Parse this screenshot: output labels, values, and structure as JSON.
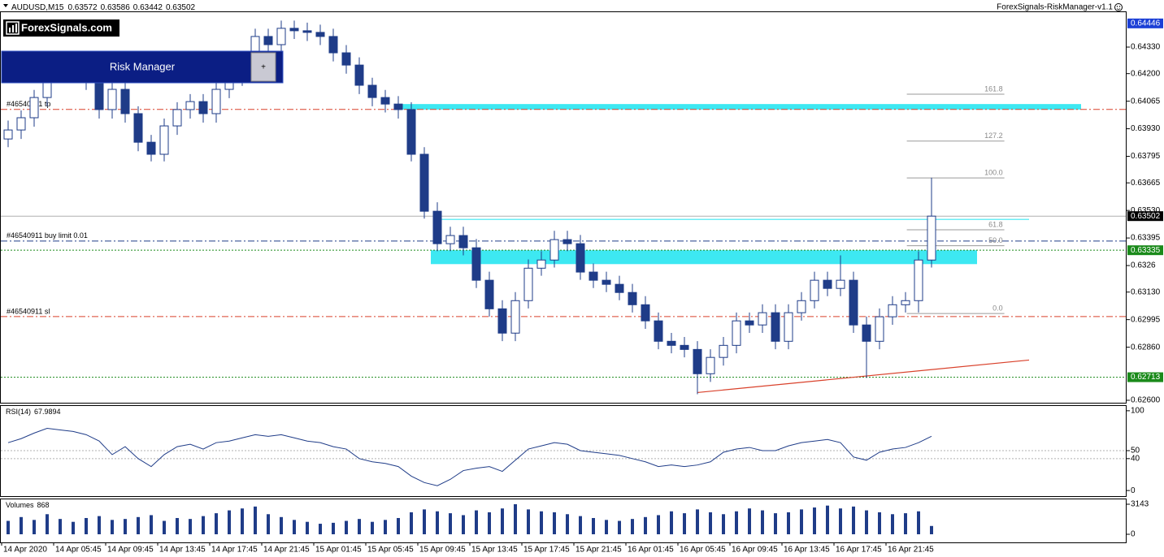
{
  "header": {
    "symbol": "AUDUSD,M15",
    "ohlc": [
      0.63572,
      0.63586,
      0.63442,
      0.63502
    ],
    "indicator": "ForexSignals-RiskManager-v1.1"
  },
  "logo": "ForexSignals.com",
  "panel": {
    "title": "Risk Manager",
    "button": "+"
  },
  "chart_data": [
    {
      "type": "candlestick",
      "color": "#1f3c88",
      "up_color": "#ffffff",
      "down_color": "#1f3c88",
      "ylim": [
        0.62588,
        0.64505
      ],
      "yticks": [
        {
          "value": 0.6433,
          "label": "0.64330"
        },
        {
          "value": 0.642,
          "label": "0.64200"
        },
        0.64065,
        {
          "value": 0.6393,
          "label": "0.63930"
        },
        0.63795,
        0.63665,
        {
          "value": 0.6353,
          "label": "0.63530"
        },
        0.63395,
        0.6326,
        {
          "value": 0.6313,
          "label": "0.63130"
        },
        0.62995,
        {
          "value": 0.6286,
          "label": "0.62860"
        },
        {
          "value": 0.626,
          "label": "0.62600"
        }
      ],
      "xticks": [
        {
          "value": 0,
          "label": "14 Apr 2020"
        },
        {
          "value": 4,
          "label": "14 Apr 05:45"
        },
        {
          "value": 8,
          "label": "14 Apr 09:45"
        },
        {
          "value": 12,
          "label": "14 Apr 13:45"
        },
        {
          "value": 16,
          "label": "14 Apr 17:45"
        },
        {
          "value": 20,
          "label": "14 Apr 21:45"
        },
        {
          "value": 24,
          "label": "15 Apr 01:45"
        },
        {
          "value": 28,
          "label": "15 Apr 05:45"
        },
        {
          "value": 32,
          "label": "15 Apr 09:45"
        },
        {
          "value": 36,
          "label": "15 Apr 13:45"
        },
        {
          "value": 40,
          "label": "15 Apr 17:45"
        },
        {
          "value": 44,
          "label": "15 Apr 21:45"
        },
        {
          "value": 48,
          "label": "16 Apr 01:45"
        },
        {
          "value": 52,
          "label": "16 Apr 05:45"
        },
        {
          "value": 56,
          "label": "16 Apr 09:45"
        },
        {
          "value": 60,
          "label": "16 Apr 13:45"
        },
        {
          "value": 64,
          "label": "16 Apr 17:45"
        },
        {
          "value": 68,
          "label": "16 Apr 21:45"
        }
      ],
      "open": [
        0.6388,
        0.63924,
        0.63984,
        0.64083,
        0.64223,
        0.64203,
        0.64242,
        0.64163,
        0.64024,
        0.64123,
        0.64004,
        0.63864,
        0.63805,
        0.63944,
        0.64024,
        0.64063,
        0.64004,
        0.64123,
        0.64183,
        0.64242,
        0.64382,
        0.64342,
        0.64422,
        0.6441,
        0.64402,
        0.64382,
        0.64302,
        0.64242,
        0.64143,
        0.64083,
        0.64051,
        0.64024,
        0.63805,
        0.63526,
        0.63367,
        0.63407,
        0.63347,
        0.63188,
        0.63048,
        0.62929,
        0.63088,
        0.63247,
        0.63287,
        0.63387,
        0.63367,
        0.63228,
        0.63188,
        0.63168,
        0.63128,
        0.63068,
        0.62989,
        0.62889,
        0.62869,
        0.62849,
        0.6273,
        0.6281,
        0.62869,
        0.62989,
        0.62969,
        0.63029,
        0.62889,
        0.63029,
        0.63088,
        0.63188,
        0.63148,
        0.63188,
        0.62969,
        0.62889,
        0.63009,
        0.63068,
        0.63088,
        0.63287
      ],
      "high": [
        0.6397,
        0.6402,
        0.6412,
        0.6426,
        0.6426,
        0.6428,
        0.6428,
        0.642,
        0.6416,
        0.6416,
        0.6404,
        0.639,
        0.6398,
        0.6406,
        0.641,
        0.641,
        0.6416,
        0.6422,
        0.6428,
        0.6442,
        0.6442,
        0.6446,
        0.6446,
        0.6445,
        0.6444,
        0.6442,
        0.6434,
        0.6428,
        0.6418,
        0.6412,
        0.6409,
        0.6406,
        0.6384,
        0.6357,
        0.6345,
        0.6345,
        0.6339,
        0.6323,
        0.6309,
        0.6313,
        0.6329,
        0.6333,
        0.6343,
        0.6343,
        0.6341,
        0.6327,
        0.6323,
        0.6321,
        0.6317,
        0.6311,
        0.6303,
        0.6293,
        0.6291,
        0.6289,
        0.6285,
        0.6291,
        0.6303,
        0.6303,
        0.6307,
        0.6307,
        0.6307,
        0.6313,
        0.6323,
        0.6323,
        0.6331,
        0.6323,
        0.6301,
        0.6305,
        0.6311,
        0.6313,
        0.6333,
        0.6369
      ],
      "low": [
        0.6384,
        0.6388,
        0.6394,
        0.6404,
        0.6416,
        0.6416,
        0.6412,
        0.6398,
        0.6398,
        0.6396,
        0.6382,
        0.6377,
        0.6377,
        0.639,
        0.6398,
        0.6396,
        0.6396,
        0.6408,
        0.6414,
        0.642,
        0.643,
        0.643,
        0.6437,
        0.6436,
        0.6434,
        0.6426,
        0.642,
        0.641,
        0.6404,
        0.6401,
        0.6398,
        0.6377,
        0.6349,
        0.6333,
        0.6333,
        0.6331,
        0.6315,
        0.6301,
        0.6289,
        0.6289,
        0.6305,
        0.6321,
        0.6325,
        0.6333,
        0.6319,
        0.6315,
        0.6313,
        0.6309,
        0.6303,
        0.6295,
        0.6285,
        0.6283,
        0.6281,
        0.6263,
        0.6269,
        0.6277,
        0.6283,
        0.6293,
        0.6293,
        0.6285,
        0.6285,
        0.6299,
        0.6305,
        0.6311,
        0.6311,
        0.6293,
        0.6271,
        0.6285,
        0.6297,
        0.6303,
        0.6303,
        0.6325
      ],
      "close": [
        0.63924,
        0.63984,
        0.64083,
        0.64223,
        0.64203,
        0.64242,
        0.64163,
        0.64024,
        0.64123,
        0.64004,
        0.63864,
        0.63805,
        0.63944,
        0.64024,
        0.64063,
        0.64004,
        0.64123,
        0.64183,
        0.64242,
        0.64382,
        0.64342,
        0.64422,
        0.6441,
        0.64402,
        0.64382,
        0.64302,
        0.64242,
        0.64143,
        0.64083,
        0.64051,
        0.64024,
        0.63805,
        0.63526,
        0.63367,
        0.63407,
        0.63347,
        0.63188,
        0.63048,
        0.62929,
        0.63088,
        0.63247,
        0.63287,
        0.63387,
        0.63367,
        0.63228,
        0.63188,
        0.63168,
        0.63128,
        0.63068,
        0.62989,
        0.62889,
        0.62869,
        0.62849,
        0.6273,
        0.6281,
        0.62869,
        0.62989,
        0.62969,
        0.63029,
        0.62889,
        0.63029,
        0.63088,
        0.63188,
        0.63148,
        0.63188,
        0.62969,
        0.62889,
        0.63009,
        0.63068,
        0.63088,
        0.63287,
        0.63502
      ],
      "levels": [
        {
          "label": "#46540911 tp",
          "value": 0.64025,
          "color": "#d9412b",
          "style": "dashdot"
        },
        {
          "label": "#46540911 buy limit 0.01",
          "value": 0.6338,
          "color": "#1f3c88",
          "style": "dashdot"
        },
        {
          "value": 0.63335,
          "color": "#1a8a1a",
          "style": "dot"
        },
        {
          "label": "#46540911 sl",
          "value": 0.6301,
          "color": "#d9412b",
          "style": "dashdot"
        },
        {
          "value": 0.62713,
          "color": "#1a8a1a",
          "style": "dot"
        },
        {
          "value": 0.63502,
          "color": "#b0b0b0",
          "style": "solid"
        }
      ],
      "zones": [
        {
          "top": 0.64051,
          "bottom": 0.64024,
          "from": 30.5,
          "to": 83,
          "color": "#3de8f2"
        },
        {
          "top": 0.63335,
          "bottom": 0.63267,
          "from": 33,
          "to": 75,
          "color": "#3de8f2"
        }
      ],
      "segments": [
        {
          "x": [
            33.4,
            79
          ],
          "y": [
            0.63486,
            0.63486
          ],
          "color": "#3de8f2"
        },
        {
          "x": [
            53.5,
            79
          ],
          "y": [
            0.62638,
            0.62797
          ],
          "color": "#d9412b"
        }
      ],
      "fib": {
        "low": 0.63025,
        "high": 0.63689,
        "from": 69.6,
        "to": 77.1,
        "levels": [
          {
            "value": 0,
            "label": "0.0"
          },
          {
            "value": 0.5,
            "label": "50.0"
          },
          {
            "value": 0.618,
            "label": "61.8"
          },
          {
            "value": 1,
            "label": "100.0"
          },
          {
            "value": 1.272,
            "label": "127.2"
          },
          {
            "value": 1.618,
            "label": "161.8"
          }
        ]
      },
      "badges": [
        {
          "value": 0.64446,
          "color": "#1b3fd6"
        },
        {
          "value": 0.63502,
          "color": "#000000"
        },
        {
          "value": 0.63335,
          "color": "#1a8a1a"
        },
        {
          "value": 0.62713,
          "color": "#1a8a1a"
        }
      ]
    },
    {
      "type": "line",
      "title": "RSI(14)",
      "current": 67.9894,
      "color": "#1f3c88",
      "ylim": [
        -7,
        107
      ],
      "yticks": [
        100,
        50,
        40,
        0
      ],
      "levels": [
        50,
        40
      ],
      "values": [
        60,
        65,
        72,
        78,
        76,
        74,
        70,
        62,
        45,
        55,
        40,
        30,
        45,
        55,
        58,
        52,
        60,
        62,
        66,
        70,
        68,
        70,
        66,
        62,
        60,
        55,
        52,
        40,
        36,
        34,
        30,
        18,
        10,
        6,
        14,
        25,
        28,
        30,
        24,
        38,
        52,
        56,
        60,
        58,
        50,
        48,
        46,
        44,
        40,
        36,
        30,
        32,
        30,
        32,
        36,
        48,
        52,
        54,
        50,
        50,
        56,
        60,
        62,
        64,
        60,
        42,
        38,
        48,
        52,
        54,
        60,
        67.9894
      ]
    },
    {
      "type": "bar",
      "title": "Volumes",
      "current": 868,
      "color": "#1f3c88",
      "ylim": [
        -849,
        3737
      ],
      "yticks": [
        3143,
        0
      ],
      "values": [
        1400,
        1800,
        1500,
        2100,
        1600,
        1300,
        1700,
        1900,
        1500,
        1600,
        1800,
        2000,
        1400,
        1700,
        1600,
        1900,
        2200,
        2500,
        2700,
        2900,
        2100,
        1800,
        1500,
        1300,
        1100,
        1200,
        1400,
        1600,
        1300,
        1500,
        1700,
        2300,
        2600,
        2400,
        2200,
        2000,
        2500,
        2300,
        2700,
        3143,
        2600,
        2400,
        2300,
        2100,
        1900,
        1700,
        1500,
        1400,
        1600,
        1800,
        2000,
        2400,
        2200,
        2600,
        2300,
        2100,
        2400,
        2700,
        2500,
        2200,
        2300,
        2600,
        2800,
        3000,
        2700,
        2900,
        2500,
        2300,
        2100,
        2200,
        2400,
        868
      ]
    }
  ]
}
